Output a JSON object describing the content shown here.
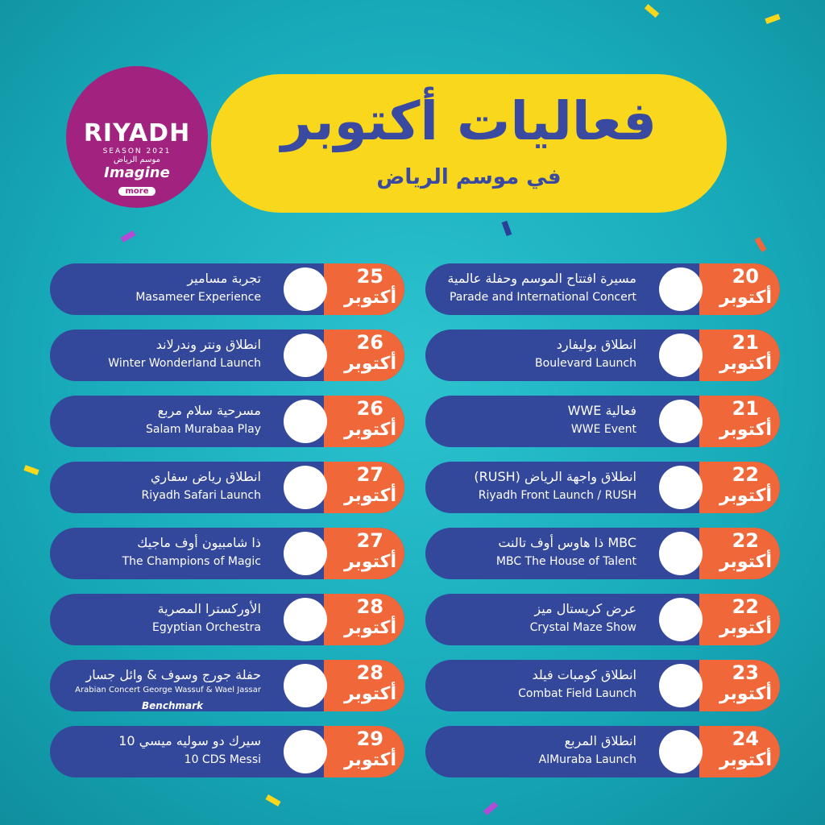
{
  "header": {
    "title": "فعاليات أكتوبر",
    "subtitle": "في موسم الرياض"
  },
  "logo": {
    "name": "RIYADH",
    "season": "SEASON 2021",
    "arabic": "موسم الرياض",
    "tagline": "Imagine",
    "more": "more"
  },
  "events": [
    {
      "day": "20",
      "month": "أكتوبر",
      "ar": "مسيرة افتتاح الموسم وحفلة عالمية",
      "en": "Parade and International Concert"
    },
    {
      "day": "21",
      "month": "أكتوبر",
      "ar": "انطلاق بوليفارد",
      "en": "Boulevard Launch"
    },
    {
      "day": "21",
      "month": "أكتوبر",
      "ar": "فعالية WWE",
      "en": "WWE Event"
    },
    {
      "day": "22",
      "month": "أكتوبر",
      "ar": "انطلاق واجهة الرياض (RUSH)",
      "en": "Riyadh Front Launch / RUSH"
    },
    {
      "day": "22",
      "month": "أكتوبر",
      "ar": "MBC ذا هاوس أوف تالنت",
      "en": "MBC  The House of Talent"
    },
    {
      "day": "22",
      "month": "أكتوبر",
      "ar": "عرض كريستال ميز",
      "en": "Crystal Maze Show"
    },
    {
      "day": "23",
      "month": "أكتوبر",
      "ar": "انطلاق كومبات فيلد",
      "en": "Combat Field Launch"
    },
    {
      "day": "24",
      "month": "أكتوبر",
      "ar": "انطلاق المربع",
      "en": "AlMuraba Launch"
    },
    {
      "day": "25",
      "month": "أكتوبر",
      "ar": "تجربة مسامير",
      "en": "Masameer Experience"
    },
    {
      "day": "26",
      "month": "أكتوبر",
      "ar": "انطلاق ونتر وندرلاند",
      "en": "Winter Wonderland Launch"
    },
    {
      "day": "26",
      "month": "أكتوبر",
      "ar": "مسرحية سلام مربع",
      "en": "Salam Murabaa Play"
    },
    {
      "day": "27",
      "month": "أكتوبر",
      "ar": "انطلاق رياض سفاري",
      "en": "Riyadh Safari Launch"
    },
    {
      "day": "27",
      "month": "أكتوبر",
      "ar": "ذا شامبيون أوف ماجيك",
      "en": "The Champions of Magic"
    },
    {
      "day": "28",
      "month": "أكتوبر",
      "ar": "الأوركسترا المصرية",
      "en": "Egyptian Orchestra"
    },
    {
      "day": "28",
      "month": "أكتوبر",
      "ar": "حفلة جورج وسوف & وائل جسار",
      "en": "Arabian Concert George Wassuf & Wael Jassar",
      "sponsor": "Benchmark"
    },
    {
      "day": "29",
      "month": "أكتوبر",
      "ar": "سيرك دو سوليه ميسي 10",
      "en": "10 CDS Messi"
    }
  ]
}
